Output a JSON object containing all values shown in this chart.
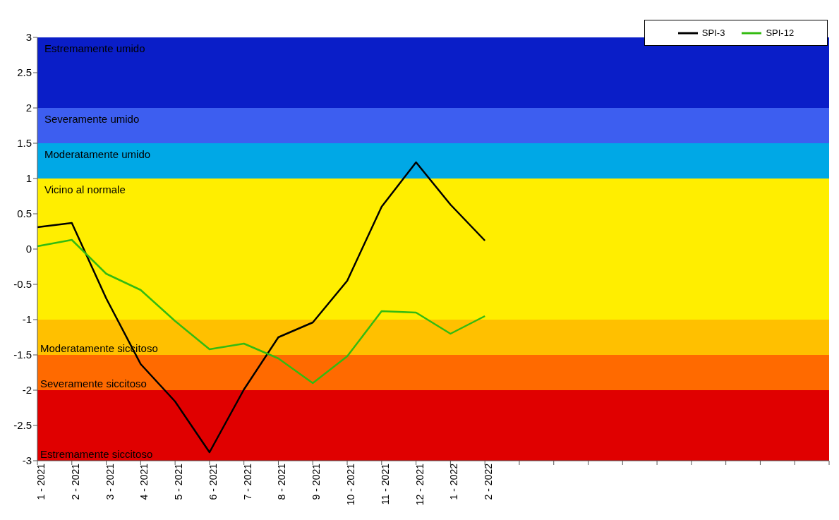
{
  "chart_data": {
    "type": "line",
    "categories": [
      "1 - 2021",
      "2 - 2021",
      "3 - 2021",
      "4 - 2021",
      "5 - 2021",
      "6 - 2021",
      "7 - 2021",
      "8 - 2021",
      "9 - 2021",
      "10 - 2021",
      "11 - 2021",
      "12 - 2021",
      "1 - 2022",
      "2 - 2022",
      null,
      null,
      null,
      null,
      null,
      null,
      null,
      null,
      null,
      null
    ],
    "series": [
      {
        "name": "SPI-3",
        "color": "#000000",
        "values": [
          0.31,
          0.37,
          -0.7,
          -1.63,
          -2.16,
          -2.88,
          -1.99,
          -1.25,
          -1.04,
          -0.45,
          0.6,
          1.23,
          0.63,
          0.12,
          null,
          null,
          null,
          null,
          null,
          null,
          null,
          null,
          null,
          null
        ]
      },
      {
        "name": "SPI-12",
        "color": "#33bb11",
        "values": [
          0.04,
          0.13,
          -0.35,
          -0.58,
          -1.02,
          -1.42,
          -1.34,
          -1.55,
          -1.9,
          -1.52,
          -0.88,
          -0.9,
          -1.2,
          -0.95,
          null,
          null,
          null,
          null,
          null,
          null,
          null,
          null,
          null,
          null
        ]
      }
    ],
    "ylim": [
      -3,
      3
    ],
    "yticks": [
      -3,
      -2.5,
      -2,
      -1.5,
      -1,
      -0.5,
      0,
      0.5,
      1,
      1.5,
      2,
      2.5,
      3
    ],
    "bands": [
      {
        "axis": "y",
        "from": 2,
        "to": 3,
        "label": "Estremamente umido",
        "color": "#0a1ec8"
      },
      {
        "axis": "y",
        "from": 1.5,
        "to": 2,
        "label": "Severamente umido",
        "color": "#3d5ef0"
      },
      {
        "axis": "y",
        "from": 1,
        "to": 1.5,
        "label": "Moderatamente umido",
        "color": "#00a8e6"
      },
      {
        "axis": "y",
        "from": -1,
        "to": 1,
        "label": "Vicino al normale",
        "color": "#ffee00"
      },
      {
        "axis": "y",
        "from": -1.5,
        "to": -1,
        "label": "Moderatamente siccitoso",
        "color": "#ffc000"
      },
      {
        "axis": "y",
        "from": -2,
        "to": -1.5,
        "label": "Severamente siccitoso",
        "color": "#ff6a00"
      },
      {
        "axis": "y",
        "from": -3,
        "to": -2,
        "label": "Estremamente siccitoso",
        "color": "#e00000"
      }
    ],
    "grid": false,
    "legend": "top right",
    "marker": "none",
    "line_style": "solid"
  }
}
